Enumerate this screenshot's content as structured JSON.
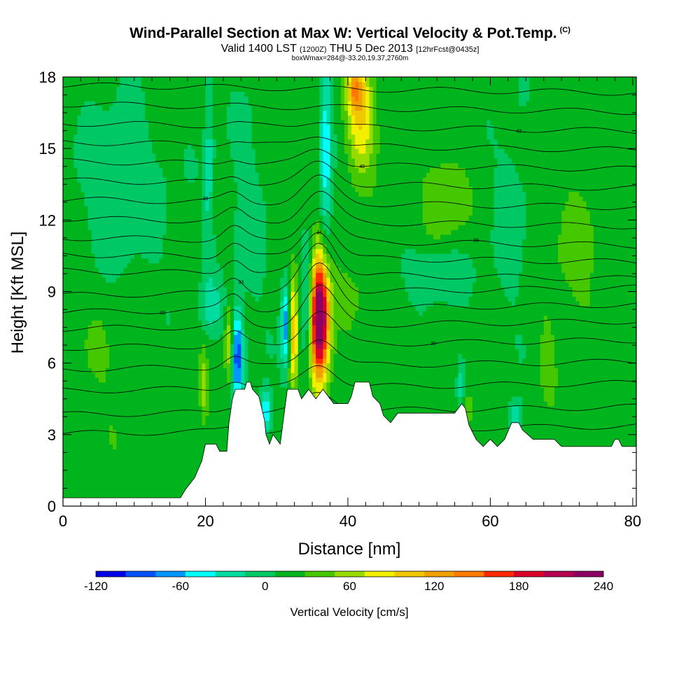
{
  "header": {
    "title": "Wind-Parallel Section at Max W: Vertical Velocity & Pot.Temp.",
    "copyright": "(C)",
    "valid_main": "Valid 1400 LST",
    "valid_utc": "(1200Z)",
    "valid_date": "THU 5 Dec 2013",
    "forecast": "[12hrFcst@0435z]",
    "box_info": "boxWmax=284@-33.20,19.37,2760m"
  },
  "chart_data": {
    "type": "heatmap",
    "xlabel": "Distance [nm]",
    "ylabel": "Height [Kft MSL]",
    "xlim": [
      0,
      80.5
    ],
    "ylim": [
      0,
      18
    ],
    "x_ticks": [
      0,
      20,
      40,
      60,
      80
    ],
    "y_ticks": [
      0,
      3,
      6,
      9,
      12,
      15,
      18
    ],
    "colorbar": {
      "title": "Vertical Velocity [cm/s]",
      "min": -120,
      "max": 240,
      "step": 20,
      "tick_values": [
        -120,
        -60,
        0,
        60,
        120,
        180,
        240
      ],
      "tick_labels": [
        "-120",
        "-60",
        "0",
        "60",
        "120",
        "180",
        "240"
      ],
      "colors": [
        "#0000e6",
        "#0050ff",
        "#0096ff",
        "#00ffff",
        "#00dca0",
        "#00c864",
        "#00b41e",
        "#46c800",
        "#96dc00",
        "#f0f000",
        "#f0c800",
        "#f0a000",
        "#ff7800",
        "#ff2800",
        "#dc0028",
        "#b40050",
        "#8c0064"
      ]
    },
    "terrain_kft": [
      [
        0,
        0.35
      ],
      [
        16.5,
        0.35
      ],
      [
        17.2,
        0.7
      ],
      [
        18.5,
        1.2
      ],
      [
        19.5,
        1.9
      ],
      [
        20,
        2.6
      ],
      [
        21.5,
        2.6
      ],
      [
        22,
        2.3
      ],
      [
        23,
        2.3
      ],
      [
        23.3,
        3.5
      ],
      [
        23.8,
        4.5
      ],
      [
        24.2,
        4.9
      ],
      [
        25.5,
        4.9
      ],
      [
        25.8,
        5.2
      ],
      [
        26.3,
        5.2
      ],
      [
        26.6,
        4.9
      ],
      [
        27.5,
        4.6
      ],
      [
        28.3,
        3.6
      ],
      [
        28.5,
        3.0
      ],
      [
        29,
        2.6
      ],
      [
        29.5,
        3.0
      ],
      [
        30.5,
        2.6
      ],
      [
        31.5,
        4.9
      ],
      [
        33,
        4.9
      ],
      [
        33.5,
        4.5
      ],
      [
        34.5,
        4.9
      ],
      [
        35.5,
        4.5
      ],
      [
        36.5,
        4.9
      ],
      [
        37.5,
        4.5
      ],
      [
        38,
        4.3
      ],
      [
        40,
        4.3
      ],
      [
        40.5,
        4.6
      ],
      [
        41,
        5.2
      ],
      [
        43,
        5.2
      ],
      [
        43.5,
        4.6
      ],
      [
        44.5,
        4.3
      ],
      [
        45,
        3.8
      ],
      [
        46,
        3.5
      ],
      [
        47,
        3.9
      ],
      [
        55,
        3.9
      ],
      [
        56,
        4.3
      ],
      [
        56.5,
        4.1
      ],
      [
        57,
        3.4
      ],
      [
        58,
        2.8
      ],
      [
        59,
        2.5
      ],
      [
        60,
        2.8
      ],
      [
        61,
        2.5
      ],
      [
        62,
        2.8
      ],
      [
        63,
        3.5
      ],
      [
        64,
        3.5
      ],
      [
        64.5,
        3.2
      ],
      [
        66,
        2.8
      ],
      [
        68,
        2.8
      ],
      [
        69,
        2.8
      ],
      [
        70,
        2.5
      ],
      [
        77,
        2.5
      ],
      [
        77.5,
        2.8
      ],
      [
        78,
        2.8
      ],
      [
        78.5,
        2.5
      ],
      [
        80,
        2.5
      ],
      [
        80.5,
        2.5
      ]
    ],
    "velocity_features": [
      {
        "x": 36,
        "y": 8.0,
        "sx": 0.9,
        "sy": 1.6,
        "w": 220
      },
      {
        "x": 36,
        "y": 7.0,
        "sx": 1.0,
        "sy": 2.8,
        "w": 40
      },
      {
        "x": 32.3,
        "y": 7.3,
        "sx": 0.5,
        "sy": 1.6,
        "w": 90
      },
      {
        "x": 23.3,
        "y": 6.9,
        "sx": 0.45,
        "sy": 1.4,
        "w": 55
      },
      {
        "x": 19.8,
        "y": 5.0,
        "sx": 0.4,
        "sy": 1.0,
        "w": 45
      },
      {
        "x": 24.5,
        "y": 6.3,
        "sx": 0.55,
        "sy": 1.3,
        "w": -100
      },
      {
        "x": 31.3,
        "y": 7.6,
        "sx": 0.45,
        "sy": 1.3,
        "w": -85
      },
      {
        "x": 28.5,
        "y": 4.0,
        "sx": 0.5,
        "sy": 0.6,
        "w": -75
      },
      {
        "x": 34.4,
        "y": 8.4,
        "sx": 0.7,
        "sy": 1.8,
        "w": -55
      },
      {
        "x": 36.9,
        "y": 14.6,
        "sx": 0.6,
        "sy": 3.2,
        "w": -60
      },
      {
        "x": 20.5,
        "y": 14.0,
        "sx": 0.45,
        "sy": 3.5,
        "w": -35
      },
      {
        "x": 41.8,
        "y": 16.3,
        "sx": 1.4,
        "sy": 1.6,
        "w": 75
      },
      {
        "x": 41.0,
        "y": 17.5,
        "sx": 0.9,
        "sy": 0.6,
        "w": 70
      },
      {
        "x": 53.5,
        "y": 13.0,
        "sx": 2.2,
        "sy": 1.4,
        "w": 30
      },
      {
        "x": 52.5,
        "y": 9.8,
        "sx": 3.0,
        "sy": 0.8,
        "w": -32
      },
      {
        "x": 21.3,
        "y": 8.3,
        "sx": 1.5,
        "sy": 0.8,
        "w": -30
      },
      {
        "x": 55.8,
        "y": 5.0,
        "sx": 0.4,
        "sy": 0.9,
        "w": -40
      },
      {
        "x": 56.8,
        "y": 4.1,
        "sx": 0.8,
        "sy": 0.5,
        "w": 30
      },
      {
        "x": 63.5,
        "y": 3.7,
        "sx": 0.6,
        "sy": 0.5,
        "w": -55
      },
      {
        "x": 68.0,
        "y": 6.2,
        "sx": 0.9,
        "sy": 1.5,
        "w": 18
      },
      {
        "x": 72.0,
        "y": 10.5,
        "sx": 2.5,
        "sy": 2.2,
        "w": 20
      },
      {
        "x": 63.0,
        "y": 12.5,
        "sx": 1.8,
        "sy": 3.0,
        "w": -18
      },
      {
        "x": 5.0,
        "y": 6.0,
        "sx": 4.0,
        "sy": 3.0,
        "w": 12
      },
      {
        "x": 8.0,
        "y": 13.0,
        "sx": 5.0,
        "sy": 3.0,
        "w": -20
      },
      {
        "x": 26.0,
        "y": 12.0,
        "sx": 2.0,
        "sy": 4.0,
        "w": -15
      },
      {
        "x": 40.0,
        "y": 9.0,
        "sx": 2.0,
        "sy": 1.0,
        "w": 20
      }
    ],
    "theta_contours": [
      {
        "y0": 3.2,
        "label": ""
      },
      {
        "y0": 4.0,
        "label": ""
      },
      {
        "y0": 5.0,
        "label": ""
      },
      {
        "y0": 5.9,
        "label": ""
      },
      {
        "y0": 6.8,
        "label": "30"
      },
      {
        "y0": 7.6,
        "label": ""
      },
      {
        "y0": 8.3,
        "label": "32"
      },
      {
        "y0": 9.0,
        "label": "33"
      },
      {
        "y0": 9.7,
        "label": "34"
      },
      {
        "y0": 10.4,
        "label": ""
      },
      {
        "y0": 11.1,
        "label": "36"
      },
      {
        "y0": 11.9,
        "label": ""
      },
      {
        "y0": 12.7,
        "label": "38"
      },
      {
        "y0": 13.5,
        "label": ""
      },
      {
        "y0": 14.3,
        "label": "40"
      },
      {
        "y0": 15.1,
        "label": ""
      },
      {
        "y0": 15.9,
        "label": "42"
      },
      {
        "y0": 16.7,
        "label": ""
      },
      {
        "y0": 17.5,
        "label": ""
      }
    ]
  }
}
